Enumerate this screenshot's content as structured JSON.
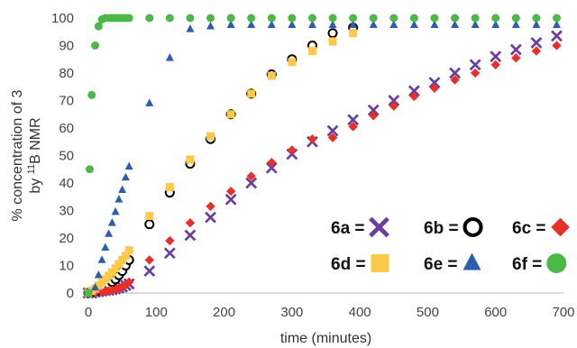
{
  "chart_data": {
    "type": "scatter",
    "xlabel": "time (minutes)",
    "ylabel_line1": "% concentration of 3",
    "ylabel_line2_prefix": "by ",
    "ylabel_line2_sup": "11",
    "ylabel_line2_suffix": "B NMR",
    "xlim": [
      0,
      700
    ],
    "ylim": [
      0,
      100
    ],
    "x_ticks": [
      0,
      100,
      200,
      300,
      400,
      500,
      600,
      700
    ],
    "y_ticks": [
      0,
      10,
      20,
      30,
      40,
      50,
      60,
      70,
      80,
      90,
      100
    ],
    "grid": false,
    "legend_position": "bottom-right",
    "series": [
      {
        "name": "6a =",
        "marker": "x",
        "color": "#6b3fa0",
        "points": [
          [
            0,
            0
          ],
          [
            5,
            0
          ],
          [
            10,
            0.3
          ],
          [
            15,
            0.5
          ],
          [
            20,
            0.7
          ],
          [
            25,
            0.9
          ],
          [
            30,
            1
          ],
          [
            35,
            1.2
          ],
          [
            40,
            1.5
          ],
          [
            45,
            1.8
          ],
          [
            50,
            2.2
          ],
          [
            55,
            2.8
          ],
          [
            60,
            3.3
          ],
          [
            90,
            8
          ],
          [
            120,
            14.5
          ],
          [
            150,
            21
          ],
          [
            180,
            27.5
          ],
          [
            210,
            34
          ],
          [
            240,
            40
          ],
          [
            270,
            45.5
          ],
          [
            300,
            50.5
          ],
          [
            330,
            55
          ],
          [
            360,
            59
          ],
          [
            390,
            63
          ],
          [
            420,
            66.5
          ],
          [
            450,
            70
          ],
          [
            480,
            73.5
          ],
          [
            510,
            76.5
          ],
          [
            540,
            80
          ],
          [
            570,
            83
          ],
          [
            600,
            86
          ],
          [
            630,
            88.5
          ],
          [
            660,
            91
          ],
          [
            690,
            93.5
          ]
        ]
      },
      {
        "name": "6b =",
        "marker": "circle-open",
        "color": "#000000",
        "points": [
          [
            0,
            0
          ],
          [
            5,
            0.3
          ],
          [
            10,
            0.7
          ],
          [
            15,
            1
          ],
          [
            20,
            1.5
          ],
          [
            25,
            2
          ],
          [
            30,
            3
          ],
          [
            35,
            4
          ],
          [
            40,
            5
          ],
          [
            45,
            6.5
          ],
          [
            50,
            8
          ],
          [
            55,
            10
          ],
          [
            60,
            12
          ],
          [
            90,
            25
          ],
          [
            120,
            36.5
          ],
          [
            150,
            47
          ],
          [
            180,
            56
          ],
          [
            210,
            65
          ],
          [
            240,
            72.5
          ],
          [
            270,
            79.5
          ],
          [
            300,
            85
          ],
          [
            330,
            90
          ],
          [
            360,
            94.5
          ],
          [
            390,
            96.5
          ]
        ]
      },
      {
        "name": "6c =",
        "marker": "diamond",
        "color": "#e8302a",
        "points": [
          [
            0,
            0
          ],
          [
            10,
            0.2
          ],
          [
            20,
            0.4
          ],
          [
            25,
            0.6
          ],
          [
            30,
            0.8
          ],
          [
            35,
            1
          ],
          [
            40,
            1.3
          ],
          [
            45,
            1.7
          ],
          [
            50,
            2.2
          ],
          [
            55,
            3
          ],
          [
            60,
            4
          ],
          [
            90,
            12
          ],
          [
            120,
            19
          ],
          [
            150,
            25.5
          ],
          [
            180,
            31.5
          ],
          [
            210,
            37
          ],
          [
            240,
            42.5
          ],
          [
            270,
            47.5
          ],
          [
            300,
            52
          ],
          [
            330,
            56
          ],
          [
            360,
            56.5
          ],
          [
            390,
            60.5
          ],
          [
            420,
            64.5
          ],
          [
            450,
            68
          ],
          [
            480,
            71.5
          ],
          [
            510,
            74.5
          ],
          [
            540,
            77.5
          ],
          [
            570,
            80
          ],
          [
            600,
            83
          ],
          [
            630,
            85.5
          ],
          [
            660,
            88
          ],
          [
            690,
            90
          ]
        ]
      },
      {
        "name": "6d =",
        "marker": "square",
        "color": "#fdc94b",
        "points": [
          [
            0,
            0
          ],
          [
            5,
            0.8
          ],
          [
            10,
            1.6
          ],
          [
            15,
            2.7
          ],
          [
            20,
            3.8
          ],
          [
            25,
            5
          ],
          [
            30,
            6.3
          ],
          [
            35,
            7.5
          ],
          [
            40,
            9
          ],
          [
            45,
            10.5
          ],
          [
            50,
            12
          ],
          [
            55,
            13.5
          ],
          [
            60,
            15.5
          ],
          [
            90,
            28
          ],
          [
            120,
            38.5
          ],
          [
            150,
            48.5
          ],
          [
            180,
            57
          ],
          [
            210,
            65
          ],
          [
            240,
            72.5
          ],
          [
            270,
            79
          ],
          [
            300,
            84
          ],
          [
            330,
            88
          ],
          [
            360,
            91.5
          ],
          [
            390,
            94.5
          ]
        ]
      },
      {
        "name": "6e =",
        "marker": "triangle",
        "color": "#2e5eab",
        "points": [
          [
            0,
            0
          ],
          [
            10,
            2
          ],
          [
            15,
            6.5
          ],
          [
            20,
            12
          ],
          [
            25,
            16.5
          ],
          [
            30,
            21.5
          ],
          [
            35,
            25.5
          ],
          [
            40,
            29.5
          ],
          [
            45,
            34
          ],
          [
            50,
            37.5
          ],
          [
            55,
            42
          ],
          [
            60,
            46
          ],
          [
            90,
            69
          ],
          [
            120,
            85.5
          ],
          [
            150,
            96
          ],
          [
            180,
            97
          ],
          [
            210,
            97.5
          ],
          [
            240,
            97.5
          ],
          [
            270,
            97.5
          ],
          [
            300,
            97.5
          ],
          [
            330,
            97.5
          ],
          [
            360,
            97.5
          ],
          [
            390,
            97.5
          ],
          [
            420,
            97.5
          ],
          [
            450,
            97.5
          ],
          [
            480,
            97.5
          ],
          [
            510,
            97.5
          ],
          [
            540,
            97.5
          ],
          [
            570,
            97.5
          ],
          [
            600,
            97.5
          ],
          [
            630,
            97.5
          ],
          [
            660,
            97.5
          ],
          [
            690,
            97.5
          ]
        ]
      },
      {
        "name": "6f =",
        "marker": "circle-filled",
        "color": "#4cb848",
        "points": [
          [
            0,
            0
          ],
          [
            2,
            45
          ],
          [
            5,
            72
          ],
          [
            10,
            90
          ],
          [
            15,
            97
          ],
          [
            20,
            99.5
          ],
          [
            25,
            100
          ],
          [
            30,
            100
          ],
          [
            35,
            100
          ],
          [
            40,
            100
          ],
          [
            45,
            100
          ],
          [
            50,
            100
          ],
          [
            55,
            100
          ],
          [
            60,
            100
          ],
          [
            90,
            100
          ],
          [
            120,
            100
          ],
          [
            150,
            100
          ],
          [
            180,
            100
          ],
          [
            210,
            100
          ],
          [
            240,
            100
          ],
          [
            270,
            100
          ],
          [
            300,
            100
          ],
          [
            330,
            100
          ],
          [
            360,
            100
          ],
          [
            390,
            100
          ],
          [
            420,
            100
          ],
          [
            450,
            100
          ],
          [
            480,
            100
          ],
          [
            510,
            100
          ],
          [
            540,
            100
          ],
          [
            570,
            100
          ],
          [
            600,
            100
          ],
          [
            630,
            100
          ],
          [
            660,
            100
          ],
          [
            690,
            100
          ]
        ]
      }
    ]
  }
}
